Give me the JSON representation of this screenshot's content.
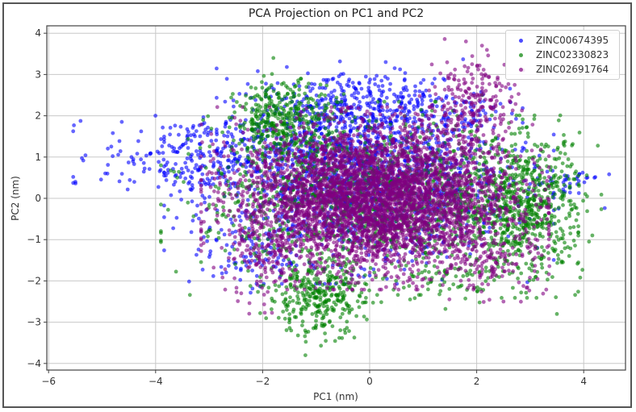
{
  "chart_data": {
    "type": "scatter",
    "title": "PCA Projection on PC1 and PC2",
    "xlabel": "PC1 (nm)",
    "ylabel": "PC2 (nm)",
    "xlim": [
      -6.05,
      4.75
    ],
    "ylim": [
      -4.2,
      4.15
    ],
    "xticks": [
      -6,
      -4,
      -2,
      0,
      2,
      4
    ],
    "yticks": [
      -4,
      -3,
      -2,
      -1,
      0,
      1,
      2,
      3,
      4
    ],
    "grid": true,
    "legend_position": "upper right",
    "point_alpha": 0.6,
    "series": [
      {
        "name": "ZINC00674395",
        "color": "#0000ff",
        "description": "Broad cloud spanning PC1 -5.5 to 4.3, PC2 -2 to 3.3; distinctive tail to the left at PC2 ~1",
        "clusters": [
          {
            "cx": -0.2,
            "cy": 0.4,
            "sx": 1.4,
            "sy": 0.95,
            "n": 1400
          },
          {
            "cx": -3.2,
            "cy": 1.05,
            "sx": 0.9,
            "sy": 0.45,
            "n": 260
          },
          {
            "cx": 0.0,
            "cy": 2.2,
            "sx": 1.1,
            "sy": 0.45,
            "n": 420
          },
          {
            "cx": -2.3,
            "cy": -1.4,
            "sx": 0.45,
            "sy": 0.35,
            "n": 70
          },
          {
            "cx": 3.6,
            "cy": 0.4,
            "sx": 0.35,
            "sy": 0.25,
            "n": 40
          }
        ],
        "outliers": [
          [
            -5.5,
            0.4
          ],
          [
            -4.9,
            0.6
          ],
          [
            0.3,
            3.3
          ],
          [
            4.2,
            0.5
          ]
        ]
      },
      {
        "name": "ZINC02330823",
        "color": "#008000",
        "description": "Wide cloud from PC1 -2.5 to 4.2, PC2 -3.8 to 3.4; dense lobes upper-left, lower-left, and right",
        "clusters": [
          {
            "cx": 0.0,
            "cy": 0.0,
            "sx": 1.5,
            "sy": 0.9,
            "n": 1300
          },
          {
            "cx": -1.6,
            "cy": 1.9,
            "sx": 0.45,
            "sy": 0.45,
            "n": 380
          },
          {
            "cx": -1.0,
            "cy": -2.4,
            "sx": 0.45,
            "sy": 0.45,
            "n": 320
          },
          {
            "cx": 2.9,
            "cy": -0.2,
            "sx": 0.55,
            "sy": 0.85,
            "n": 650
          },
          {
            "cx": 1.5,
            "cy": -2.0,
            "sx": 0.6,
            "sy": 0.3,
            "n": 60
          }
        ],
        "outliers": [
          [
            -1.8,
            3.4
          ],
          [
            -1.2,
            -3.8
          ],
          [
            3.5,
            -2.8
          ],
          [
            2.1,
            2.5
          ]
        ]
      },
      {
        "name": "ZINC02691764",
        "color": "#800080",
        "description": "Dense core PC1 -2.3 to 3, PC2 -2.3 to 2.2 drawn on top; upward plume near PC1 2, PC2 up to 3.8",
        "clusters": [
          {
            "cx": 0.1,
            "cy": 0.0,
            "sx": 1.25,
            "sy": 0.85,
            "n": 4200
          },
          {
            "cx": 1.9,
            "cy": 2.3,
            "sx": 0.4,
            "sy": 0.6,
            "n": 220
          },
          {
            "cx": -2.1,
            "cy": -1.6,
            "sx": 0.35,
            "sy": 0.5,
            "n": 90
          },
          {
            "cx": 2.3,
            "cy": -1.6,
            "sx": 0.5,
            "sy": 0.35,
            "n": 110
          }
        ],
        "outliers": [
          [
            1.8,
            3.8
          ],
          [
            2.1,
            3.7
          ],
          [
            -2.4,
            -2.3
          ],
          [
            2.5,
            -2.5
          ]
        ]
      }
    ]
  },
  "legend": {
    "items": [
      {
        "label": "ZINC00674395",
        "color": "#0000ff"
      },
      {
        "label": "ZINC02330823",
        "color": "#008000"
      },
      {
        "label": "ZINC02691764",
        "color": "#800080"
      }
    ]
  }
}
